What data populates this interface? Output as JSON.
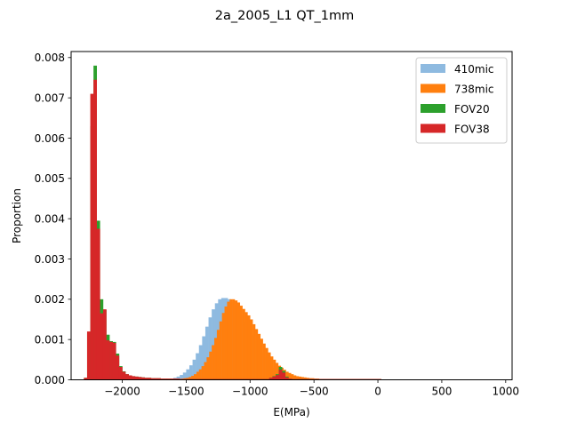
{
  "chart_data": {
    "type": "bar",
    "title": "2a_2005_L1 QT_1mm",
    "xlabel": "E(MPa)",
    "ylabel": "Proportion",
    "xlim": [
      -2400,
      1050
    ],
    "ylim": [
      0,
      0.00815
    ],
    "xticks": [
      -2000,
      -1500,
      -1000,
      -500,
      0,
      500,
      1000
    ],
    "xtick_labels": [
      "−2000",
      "−1500",
      "−1000",
      "−500",
      "0",
      "500",
      "1000"
    ],
    "yticks": [
      0,
      0.001,
      0.002,
      0.003,
      0.004,
      0.005,
      0.006,
      0.007,
      0.008
    ],
    "ytick_labels": [
      "0.000",
      "0.001",
      "0.002",
      "0.003",
      "0.004",
      "0.005",
      "0.006",
      "0.007",
      "0.008"
    ],
    "grid": false,
    "legend_position": "top-right",
    "series": [
      {
        "name": "410mic",
        "color": "#8ebae0",
        "style": "histogram",
        "bin_start": -1650,
        "bin_width": 25,
        "values": [
          2e-05,
          3e-05,
          5e-05,
          8e-05,
          0.00012,
          0.00018,
          0.00026,
          0.00036,
          0.0005,
          0.00066,
          0.00086,
          0.00108,
          0.00132,
          0.00155,
          0.00175,
          0.0019,
          0.002,
          0.00203,
          0.00203,
          0.002,
          0.00194,
          0.00186,
          0.00175,
          0.0016,
          0.00145,
          0.00128,
          0.00111,
          0.00096,
          0.00081,
          0.00068,
          0.00056,
          0.00046,
          0.00037,
          0.0003,
          0.00024,
          0.00019,
          0.00015,
          0.00012,
          0.0001,
          8e-05,
          7e-05,
          6e-05,
          5e-05,
          4e-05,
          4e-05,
          3e-05,
          3e-05,
          2e-05,
          2e-05,
          2e-05,
          2e-05,
          2e-05,
          1e-05,
          1e-05,
          1e-05,
          1e-05,
          1e-05,
          1e-05,
          1e-05,
          1e-05,
          1e-05,
          1e-05,
          1e-05,
          1e-05,
          1e-05,
          1e-05,
          1e-05,
          1e-05,
          1e-05,
          1e-05,
          1e-05,
          1e-05,
          1e-05,
          1e-05,
          1e-05,
          1e-05,
          1e-05,
          1e-05,
          1e-05,
          1e-05,
          1e-05,
          1e-05,
          1e-05,
          1e-05,
          1e-05,
          1e-05,
          1e-05,
          1e-05,
          1e-05,
          1e-05,
          1e-05,
          1e-05,
          1e-05,
          1e-05,
          1e-05,
          1e-05,
          1e-05,
          1e-05,
          1e-05,
          1e-05,
          1e-05,
          1e-05,
          1e-05,
          1e-05
        ]
      },
      {
        "name": "738mic",
        "color": "#ff7f0e",
        "style": "histogram",
        "bin_start": -1600,
        "bin_width": 20,
        "values": [
          1e-05,
          1e-05,
          2e-05,
          3e-05,
          4e-05,
          5e-05,
          7e-05,
          0.0001,
          0.00014,
          0.0002,
          0.00026,
          0.00034,
          0.00044,
          0.00056,
          0.0007,
          0.00086,
          0.00104,
          0.00124,
          0.00145,
          0.00166,
          0.00182,
          0.00194,
          0.002,
          0.002,
          0.00197,
          0.00192,
          0.00184,
          0.00176,
          0.00168,
          0.0016,
          0.0015,
          0.00138,
          0.00126,
          0.00114,
          0.00102,
          0.0009,
          0.00079,
          0.00068,
          0.00058,
          0.0005,
          0.00042,
          0.00035,
          0.0003,
          0.00025,
          0.0002,
          0.00017,
          0.00014,
          0.00011,
          9e-05,
          8e-05,
          7e-05,
          6e-05,
          5e-05,
          4e-05,
          4e-05,
          3e-05,
          3e-05,
          2e-05,
          2e-05,
          2e-05,
          2e-05,
          1e-05,
          1e-05,
          1e-05,
          1e-05,
          1e-05,
          1e-05,
          1e-05,
          1e-05,
          1e-05,
          1e-05,
          1e-05,
          1e-05,
          1e-05,
          1e-05,
          1e-05,
          1e-05,
          1e-05,
          1e-05,
          1e-05,
          1e-05,
          1e-05,
          1e-05,
          1e-05,
          1e-05,
          1e-05,
          1e-05,
          1e-05,
          1e-05,
          1e-05,
          1e-05,
          1e-05
        ]
      },
      {
        "name": "FOV20",
        "color": "#2ca02c",
        "style": "histogram",
        "bin_start": -2300,
        "bin_width": 25,
        "values": [
          5e-05,
          0.00115,
          0.0063,
          0.0078,
          0.00395,
          0.002,
          0.00173,
          0.00112,
          0.00096,
          0.00094,
          0.00065,
          0.00034,
          0.00021,
          0.00014,
          0.00011,
          9e-05,
          8e-05,
          7e-05,
          6e-05,
          5e-05,
          5e-05,
          4e-05,
          4e-05,
          4e-05,
          3e-05,
          3e-05,
          3e-05,
          3e-05,
          3e-05,
          3e-05,
          2e-05,
          2e-05,
          2e-05,
          2e-05,
          2e-05,
          2e-05,
          2e-05,
          2e-05,
          2e-05,
          2e-05,
          2e-05,
          2e-05,
          2e-05,
          2e-05,
          2e-05,
          2e-05,
          2e-05,
          2e-05,
          2e-05,
          2e-05,
          2e-05,
          2e-05,
          2e-05,
          2e-05,
          2e-05,
          2e-05,
          2e-05,
          2e-05,
          5e-05,
          9e-05,
          0.00014,
          0.00032,
          0.00022,
          8e-05,
          3e-05,
          2e-05,
          2e-05,
          2e-05,
          2e-05,
          2e-05,
          2e-05,
          2e-05,
          2e-05,
          2e-05,
          2e-05,
          2e-05,
          2e-05,
          2e-05,
          2e-05,
          2e-05,
          2e-05,
          2e-05,
          2e-05,
          2e-05,
          2e-05,
          2e-05,
          2e-05,
          2e-05,
          2e-05,
          2e-05,
          2e-05,
          2e-05,
          2e-05
        ]
      },
      {
        "name": "FOV38",
        "color": "#d62728",
        "style": "histogram",
        "bin_start": -2300,
        "bin_width": 25,
        "values": [
          5e-05,
          0.0012,
          0.0071,
          0.00745,
          0.00375,
          0.00165,
          0.00175,
          0.00098,
          0.00094,
          0.00092,
          0.0006,
          0.00032,
          0.0002,
          0.00014,
          0.00011,
          9e-05,
          8e-05,
          7e-05,
          6e-05,
          5e-05,
          5e-05,
          4e-05,
          4e-05,
          4e-05,
          3e-05,
          3e-05,
          3e-05,
          3e-05,
          3e-05,
          3e-05,
          2e-05,
          2e-05,
          2e-05,
          2e-05,
          2e-05,
          2e-05,
          2e-05,
          2e-05,
          2e-05,
          2e-05,
          2e-05,
          2e-05,
          2e-05,
          2e-05,
          2e-05,
          2e-05,
          2e-05,
          2e-05,
          2e-05,
          2e-05,
          2e-05,
          2e-05,
          2e-05,
          2e-05,
          2e-05,
          2e-05,
          2e-05,
          2e-05,
          5e-05,
          8e-05,
          0.00012,
          0.00025,
          0.00018,
          6e-05,
          3e-05,
          2e-05,
          2e-05,
          2e-05,
          2e-05,
          2e-05,
          2e-05,
          2e-05,
          2e-05,
          2e-05,
          2e-05,
          2e-05,
          2e-05,
          2e-05,
          2e-05,
          2e-05,
          2e-05,
          2e-05,
          2e-05,
          2e-05,
          2e-05,
          2e-05,
          2e-05,
          2e-05,
          2e-05,
          2e-05,
          2e-05,
          2e-05,
          2e-05
        ]
      }
    ]
  }
}
